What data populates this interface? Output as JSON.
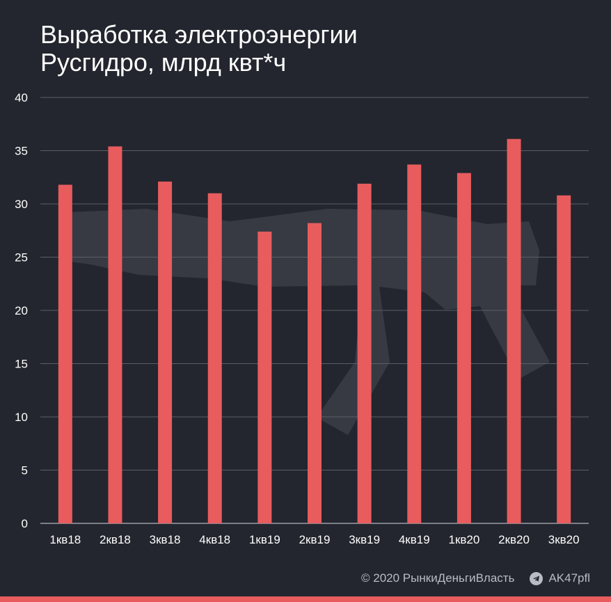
{
  "chart_data": {
    "type": "bar",
    "title_line1": "Выработка электроэнергии",
    "title_line2": "Русгидро, млрд квт*ч",
    "categories": [
      "1кв18",
      "2кв18",
      "3кв18",
      "4кв18",
      "1кв19",
      "2кв19",
      "3кв19",
      "4кв19",
      "1кв20",
      "2кв20",
      "3кв20"
    ],
    "values": [
      31.8,
      35.4,
      32.1,
      31.0,
      27.4,
      28.2,
      31.9,
      33.7,
      32.9,
      36.1,
      30.8
    ],
    "yticks": [
      0,
      5,
      10,
      15,
      20,
      25,
      30,
      35,
      40
    ],
    "ylim": [
      0,
      40
    ],
    "grid": true,
    "bar_color": "#e85c5e"
  },
  "footer": {
    "copyright": "© 2020  РынкиДеньгиВласть",
    "channel": "AK47pfl",
    "channel_icon": "telegram-icon"
  },
  "colors": {
    "background": "#23262e",
    "grid": "#5a5e68",
    "text": "#ffffff",
    "footer_text": "#b8bcc4"
  }
}
